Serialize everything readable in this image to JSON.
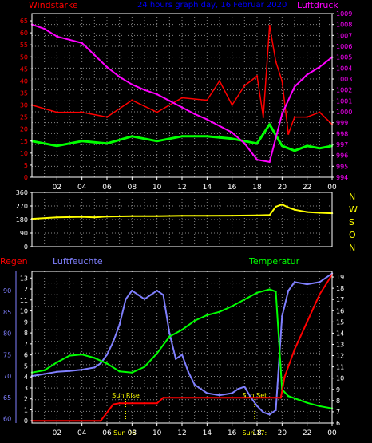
{
  "title": "24 hours graph day, 16 Februar 2020",
  "colors": {
    "background": "#000000",
    "frame": "#ffffff",
    "grid": "#888888",
    "wind": "#ff0000",
    "gust": "#00ff00",
    "pressure": "#ff00ff",
    "direction": "#ffff00",
    "humidity": "#8080ff",
    "temperature": "#00ff00",
    "rain": "#ff0000",
    "sun": "#ffff00",
    "title": "#0000ff"
  },
  "chart_data": [
    {
      "type": "line",
      "name": "wind-pressure",
      "left_label": "Windstärke",
      "right_label": "Luftdruck",
      "left_ticks": [
        "0",
        "5",
        "10",
        "15",
        "20",
        "25",
        "30",
        "35",
        "40",
        "45",
        "50",
        "55",
        "60",
        "65"
      ],
      "right_ticks": [
        "994",
        "995",
        "996",
        "997",
        "998",
        "999",
        "1000",
        "1001",
        "1002",
        "1003",
        "1004",
        "1005",
        "1006",
        "1007",
        "1008",
        "1009"
      ],
      "x_ticks": [
        "02",
        "04",
        "06",
        "08",
        "10",
        "12",
        "14",
        "16",
        "18",
        "20",
        "22",
        "00"
      ],
      "ylim_left": [
        0,
        68
      ],
      "ylim_right": [
        994,
        1009
      ],
      "series": [
        {
          "key": "pressure",
          "axis": "right",
          "x": [
            0,
            1,
            2,
            3,
            4,
            5,
            6,
            7,
            8,
            9,
            10,
            11,
            12,
            13,
            14,
            15,
            16,
            17,
            18,
            19,
            20,
            21,
            22,
            23,
            24
          ],
          "values": [
            1008.0,
            1007.6,
            1006.9,
            1006.6,
            1006.3,
            1005.2,
            1004.1,
            1003.2,
            1002.5,
            1002.0,
            1001.6,
            1001.0,
            1000.4,
            999.8,
            999.3,
            998.7,
            998.1,
            997.1,
            995.6,
            995.4,
            999.8,
            1002.3,
            1003.4,
            1004.1,
            1005.0
          ]
        },
        {
          "key": "gust",
          "axis": "left",
          "x": [
            0,
            2,
            4,
            6,
            8,
            10,
            12,
            14,
            15,
            16,
            17,
            18,
            18.5,
            19,
            19.5,
            20,
            20.5,
            21,
            22,
            23,
            24
          ],
          "values": [
            30,
            27,
            27,
            25,
            32,
            27,
            33,
            32,
            40,
            30,
            38,
            42,
            25,
            63,
            48,
            40,
            18,
            25,
            25,
            27,
            22
          ]
        },
        {
          "key": "wind",
          "axis": "left",
          "x": [
            0,
            2,
            4,
            6,
            8,
            10,
            12,
            14,
            16,
            18,
            19,
            20,
            21,
            22,
            23,
            24
          ],
          "values": [
            15,
            13,
            15,
            14,
            17,
            15,
            17,
            17,
            16,
            14,
            22,
            13,
            11,
            13,
            12,
            13
          ]
        }
      ]
    },
    {
      "type": "line",
      "name": "wind-direction",
      "left_ticks": [
        "0",
        "90",
        "180",
        "270",
        "360"
      ],
      "direction_labels": [
        "N",
        "W",
        "S",
        "O",
        "N"
      ],
      "ylim": [
        0,
        360
      ],
      "series": [
        {
          "key": "direction",
          "x": [
            0,
            2,
            4,
            5,
            6,
            8,
            10,
            12,
            14,
            16,
            18,
            19,
            19.5,
            20,
            20.5,
            21,
            22,
            23,
            24
          ],
          "values": [
            185,
            195,
            198,
            195,
            200,
            203,
            203,
            205,
            205,
            206,
            208,
            210,
            265,
            280,
            260,
            245,
            230,
            225,
            222
          ]
        }
      ]
    },
    {
      "type": "line",
      "name": "rain-humidity-temperature",
      "left_labels": [
        "Regen",
        "Luftfeuchte"
      ],
      "right_label": "Temperatur",
      "humidity_ticks": [
        "60",
        "65",
        "70",
        "75",
        "80",
        "85",
        "90"
      ],
      "rain_ticks": [
        "0",
        "1",
        "2",
        "3",
        "4",
        "5",
        "6",
        "7",
        "8",
        "9",
        "10",
        "11",
        "12",
        "13"
      ],
      "temp_ticks": [
        "6",
        "7",
        "8",
        "9",
        "10",
        "11",
        "12",
        "13",
        "14",
        "15",
        "16",
        "17",
        "18",
        "19"
      ],
      "ylim_humidity": [
        59,
        94.5
      ],
      "ylim_rain": [
        -0.2,
        13.6
      ],
      "ylim_temp": [
        6,
        19.5
      ],
      "sun_rise_label": "Sun Rise",
      "sun_set_label": "Sun Set",
      "sun_rise_time": "Sun 06:",
      "sun_set_time": "Sun 17:",
      "sun_rise_x": 7.5,
      "sun_set_x": 17.8,
      "series": [
        {
          "key": "humidity",
          "x": [
            0,
            1,
            2,
            3,
            4,
            5,
            5.5,
            6,
            6.5,
            7,
            7.5,
            8,
            8.5,
            9,
            9.5,
            10,
            10.5,
            11,
            11.5,
            12,
            12.5,
            13,
            14,
            15,
            16,
            16.5,
            17,
            17.5,
            18,
            18.5,
            19,
            19.5,
            20,
            20.5,
            21,
            22,
            23,
            24
          ],
          "values": [
            70,
            70.5,
            71,
            71.2,
            71.5,
            72,
            73,
            75,
            78,
            82,
            88,
            90,
            89,
            88,
            89,
            90,
            89,
            80,
            74,
            75,
            71,
            68,
            66,
            65.5,
            66,
            67,
            67.5,
            65,
            63,
            61.5,
            61,
            62,
            84,
            90,
            92,
            91.5,
            92,
            94
          ]
        },
        {
          "key": "temperature",
          "x": [
            0,
            1,
            2,
            3,
            4,
            5,
            6,
            7,
            8,
            9,
            10,
            11,
            12,
            13,
            14,
            15,
            16,
            17,
            18,
            19,
            19.5,
            20,
            20.5,
            21,
            22,
            23,
            24
          ],
          "values": [
            10.5,
            10.7,
            11.4,
            12.0,
            12.1,
            11.8,
            11.3,
            10.6,
            10.5,
            11.0,
            12.2,
            13.7,
            14.3,
            15.1,
            15.6,
            15.9,
            16.4,
            17.0,
            17.6,
            17.9,
            17.7,
            9.0,
            8.4,
            8.2,
            7.8,
            7.5,
            7.3
          ]
        },
        {
          "key": "rain",
          "x": [
            0,
            5.5,
            6.5,
            7,
            9,
            10,
            10.5,
            12,
            14,
            16,
            18,
            19.9,
            20.2,
            21,
            22,
            23,
            24
          ],
          "values": [
            0,
            0,
            1.5,
            1.6,
            1.6,
            1.6,
            2.1,
            2.1,
            2.1,
            2.1,
            2.1,
            2.1,
            4,
            6.5,
            9,
            11.5,
            13.3
          ]
        }
      ]
    }
  ]
}
